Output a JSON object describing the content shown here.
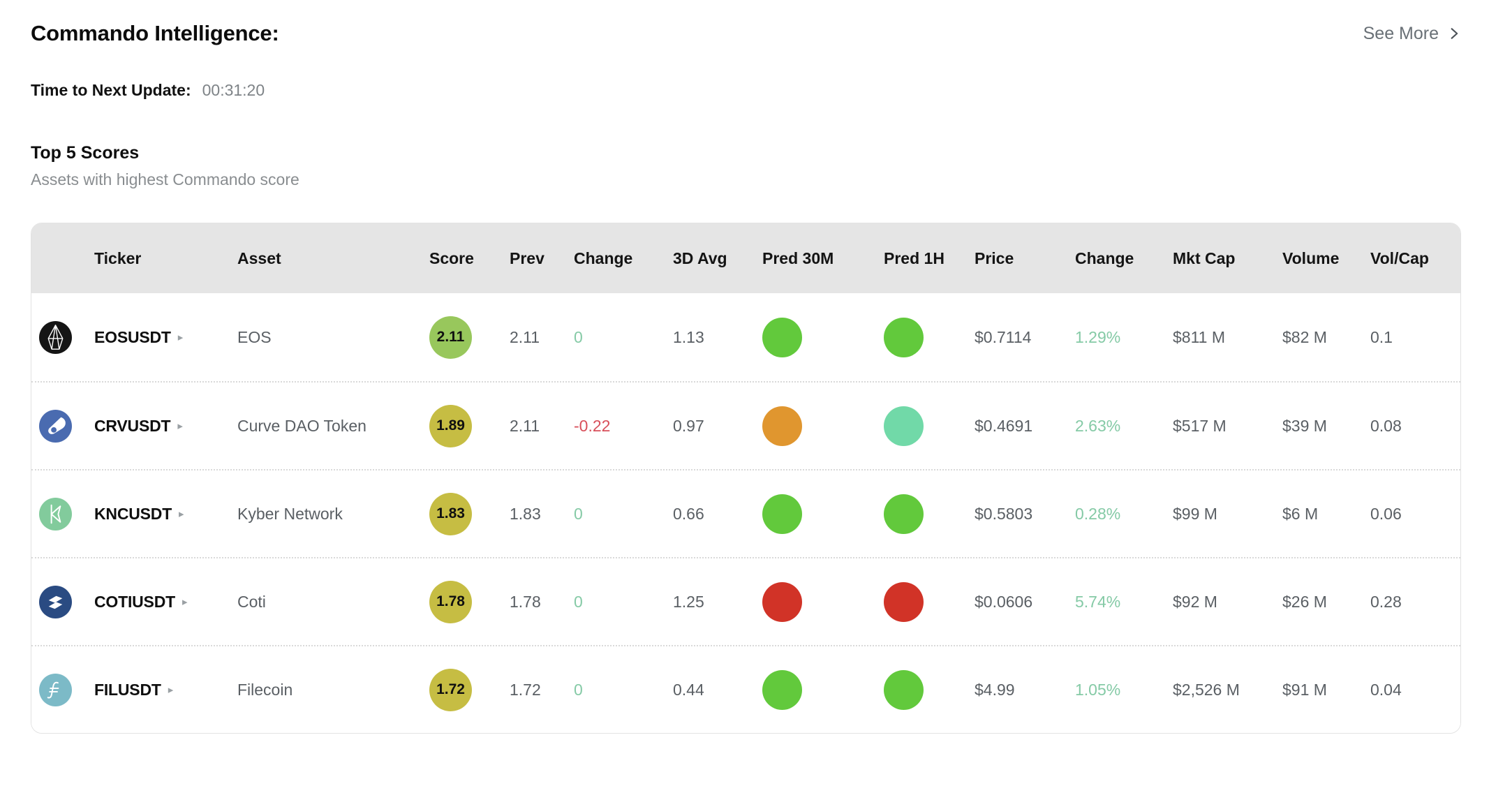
{
  "header": {
    "title": "Commando Intelligence:",
    "see_more": "See More"
  },
  "timer": {
    "label": "Time to Next Update:",
    "value": "00:31:20"
  },
  "section": {
    "title": "Top 5 Scores",
    "subtitle": "Assets with highest Commando score"
  },
  "table": {
    "columns": [
      "Ticker",
      "Asset",
      "Score",
      "Prev",
      "Change",
      "3D Avg",
      "Pred 30M",
      "Pred 1H",
      "Price",
      "Change",
      "Mkt Cap",
      "Volume",
      "Vol/Cap"
    ],
    "rows": [
      {
        "ticker": "EOSUSDT",
        "asset": "EOS",
        "icon": "eos-icon",
        "score": "2.11",
        "score_tone": "green",
        "prev": "2.11",
        "change": "0",
        "change_dir": "zero",
        "avg3d": "1.13",
        "pred30m": "green",
        "pred1h": "green",
        "price": "$0.7114",
        "price_change": "1.29%",
        "mkt_cap": "$811 M",
        "volume": "$82 M",
        "vol_cap": "0.1"
      },
      {
        "ticker": "CRVUSDT",
        "asset": "Curve DAO Token",
        "icon": "crv-icon",
        "score": "1.89",
        "score_tone": "olive",
        "prev": "2.11",
        "change": "-0.22",
        "change_dir": "neg",
        "avg3d": "0.97",
        "pred30m": "orange",
        "pred1h": "mint",
        "price": "$0.4691",
        "price_change": "2.63%",
        "mkt_cap": "$517 M",
        "volume": "$39 M",
        "vol_cap": "0.08"
      },
      {
        "ticker": "KNCUSDT",
        "asset": "Kyber Network",
        "icon": "knc-icon",
        "score": "1.83",
        "score_tone": "olive",
        "prev": "1.83",
        "change": "0",
        "change_dir": "zero",
        "avg3d": "0.66",
        "pred30m": "green",
        "pred1h": "green",
        "price": "$0.5803",
        "price_change": "0.28%",
        "mkt_cap": "$99 M",
        "volume": "$6 M",
        "vol_cap": "0.06"
      },
      {
        "ticker": "COTIUSDT",
        "asset": "Coti",
        "icon": "coti-icon",
        "score": "1.78",
        "score_tone": "olive",
        "prev": "1.78",
        "change": "0",
        "change_dir": "zero",
        "avg3d": "1.25",
        "pred30m": "red",
        "pred1h": "red",
        "price": "$0.0606",
        "price_change": "5.74%",
        "mkt_cap": "$92 M",
        "volume": "$26 M",
        "vol_cap": "0.28"
      },
      {
        "ticker": "FILUSDT",
        "asset": "Filecoin",
        "icon": "fil-icon",
        "score": "1.72",
        "score_tone": "olive",
        "prev": "1.72",
        "change": "0",
        "change_dir": "zero",
        "avg3d": "0.44",
        "pred30m": "green",
        "pred1h": "green",
        "price": "$4.99",
        "price_change": "1.05%",
        "mkt_cap": "$2,526 M",
        "volume": "$91 M",
        "vol_cap": "0.04"
      }
    ]
  },
  "colors": {
    "positive_change": "#85caa6",
    "negative_change": "#d84f5a",
    "score_badge": {
      "green": "#98c75c",
      "olive": "#c6bd43"
    },
    "prediction": {
      "green": "#62c93c",
      "orange": "#e0962f",
      "mint": "#71d9a8",
      "red": "#d13327"
    },
    "icon_bg": {
      "eos-icon": "#151515",
      "crv-icon": "#4a6bb0",
      "knc-icon": "#82cb9c",
      "coti-icon": "#2a4b82",
      "fil-icon": "#7cbac7"
    }
  }
}
